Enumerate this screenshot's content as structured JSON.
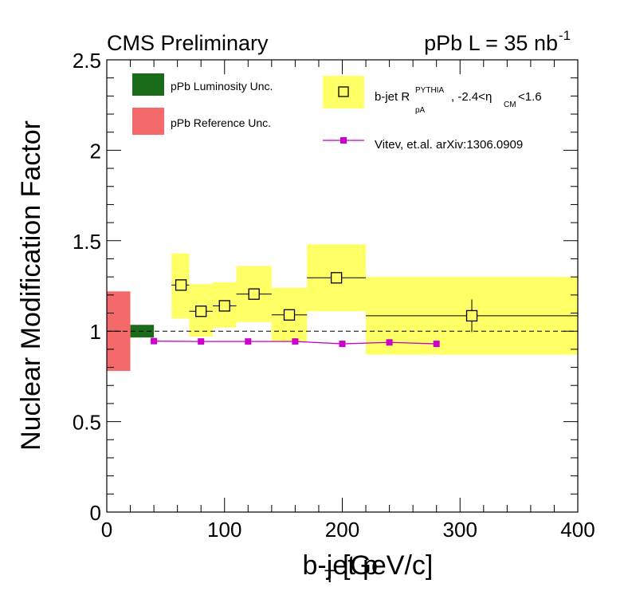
{
  "chart_data": {
    "type": "scatter",
    "header_left": "CMS Preliminary",
    "header_right": "pPb L = 35 nb",
    "header_right_sup": "-1",
    "xlabel": "b-jet p",
    "xlabel_sub": "T",
    "xlabel_unit": "[GeV/c]",
    "ylabel": "Nuclear Modification Factor",
    "xlim": [
      0,
      400
    ],
    "ylim": [
      0,
      2.5
    ],
    "x_ticks": [
      0,
      100,
      200,
      300,
      400
    ],
    "x_tick_labels": [
      "0",
      "100",
      "200",
      "300",
      "400"
    ],
    "y_ticks": [
      0,
      0.5,
      1,
      1.5,
      2,
      2.5
    ],
    "y_tick_labels": [
      "0",
      "0.5",
      "1",
      "1.5",
      "2",
      "2.5"
    ],
    "reference_line": 1,
    "normalization_boxes": [
      {
        "name": "pPb Luminosity Unc.",
        "x_low": 20,
        "x_high": 40,
        "y_low": 0.965,
        "y_high": 1.035,
        "color": "#1a6b1a"
      },
      {
        "name": "pPb Reference Unc.",
        "x_low": 0,
        "x_high": 20,
        "y_low": 0.78,
        "y_high": 1.22,
        "color": "#f46a6a"
      }
    ],
    "series": [
      {
        "name": "b-jet R_pA^PYTHIA, -2.4<eta_CM<1.6",
        "style": "open-square",
        "sys_color": "#ffff66",
        "points": [
          {
            "x": 63,
            "y": 1.255,
            "xlo": 55,
            "xhi": 70,
            "stat": 0.01,
            "sys_lo": 1.07,
            "sys_hi": 1.43
          },
          {
            "x": 80,
            "y": 1.11,
            "xlo": 70,
            "xhi": 90,
            "stat": 0.01,
            "sys_lo": 0.97,
            "sys_hi": 1.26
          },
          {
            "x": 100,
            "y": 1.14,
            "xlo": 90,
            "xhi": 110,
            "stat": 0.01,
            "sys_lo": 1.02,
            "sys_hi": 1.27
          },
          {
            "x": 125,
            "y": 1.205,
            "xlo": 110,
            "xhi": 140,
            "stat": 0.01,
            "sys_lo": 1.05,
            "sys_hi": 1.36
          },
          {
            "x": 155,
            "y": 1.09,
            "xlo": 140,
            "xhi": 170,
            "stat": 0.01,
            "sys_lo": 0.94,
            "sys_hi": 1.24
          },
          {
            "x": 195,
            "y": 1.295,
            "xlo": 170,
            "xhi": 220,
            "stat": 0.02,
            "sys_lo": 1.11,
            "sys_hi": 1.48
          },
          {
            "x": 310,
            "y": 1.085,
            "xlo": 220,
            "xhi": 400,
            "stat": 0.09,
            "sys_lo": 0.87,
            "sys_hi": 1.3
          }
        ]
      },
      {
        "name": "Vitev, et.al. arXiv:1306.0909",
        "style": "line-marker",
        "color": "#cc00cc",
        "x": [
          40,
          80,
          120,
          160,
          200,
          240,
          280
        ],
        "y": [
          0.945,
          0.943,
          0.943,
          0.943,
          0.93,
          0.938,
          0.93
        ]
      }
    ],
    "legend": {
      "lumi": "pPb Luminosity Unc.",
      "ref": "pPb Reference Unc.",
      "data_main": "b-jet R",
      "data_sup": "PYTHIA",
      "data_sub": "pA",
      "data_rest": ", -2.4<η",
      "data_eta_sub": "CM",
      "data_end": "<1.6",
      "theory": "Vitev, et.al. arXiv:1306.0909"
    }
  }
}
